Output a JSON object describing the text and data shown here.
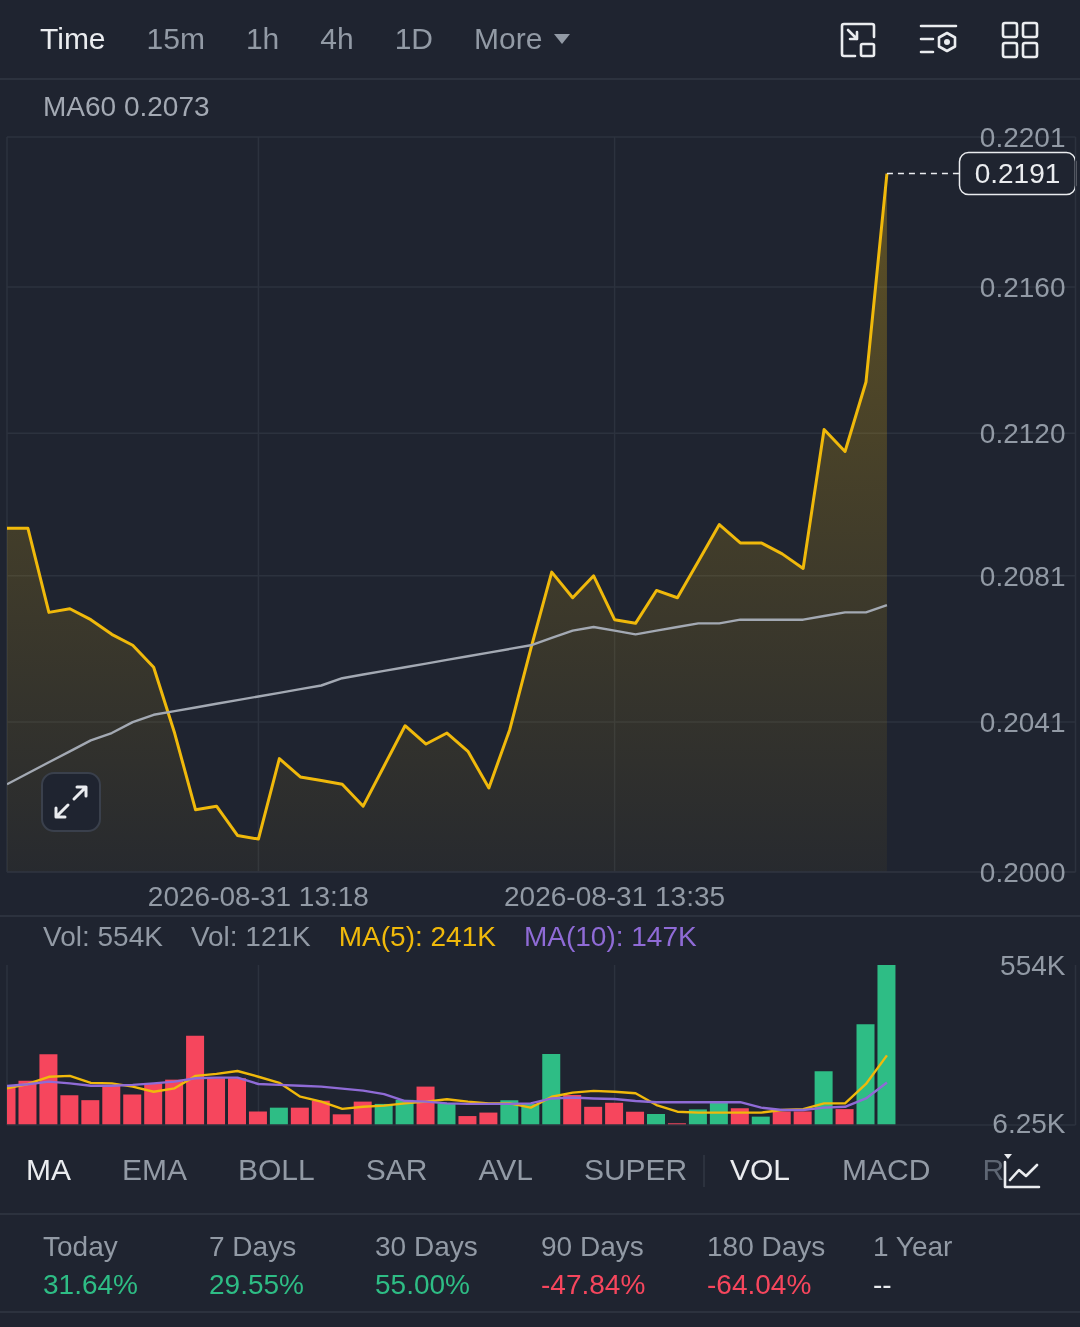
{
  "chart_data": [
    {
      "type": "other",
      "categories": [
        "Time",
        "15m",
        "1h",
        "4h",
        "1D",
        "More"
      ],
      "colors": [
        "#eaecef",
        "#929aa5",
        "#929aa5",
        "#929aa5",
        "#929aa5",
        "#929aa5"
      ]
    },
    {
      "type": "area",
      "x": [
        "2026-08-31T13:06",
        "2026-08-31T13:07",
        "2026-08-31T13:08",
        "2026-08-31T13:09",
        "2026-08-31T13:10",
        "2026-08-31T13:11",
        "2026-08-31T13:12",
        "2026-08-31T13:13",
        "2026-08-31T13:14",
        "2026-08-31T13:15",
        "2026-08-31T13:16",
        "2026-08-31T13:17",
        "2026-08-31T13:18",
        "2026-08-31T13:19",
        "2026-08-31T13:20",
        "2026-08-31T13:21",
        "2026-08-31T13:22",
        "2026-08-31T13:23",
        "2026-08-31T13:24",
        "2026-08-31T13:25",
        "2026-08-31T13:26",
        "2026-08-31T13:27",
        "2026-08-31T13:28",
        "2026-08-31T13:29",
        "2026-08-31T13:30",
        "2026-08-31T13:31",
        "2026-08-31T13:32",
        "2026-08-31T13:33",
        "2026-08-31T13:34",
        "2026-08-31T13:35",
        "2026-08-31T13:36",
        "2026-08-31T13:37",
        "2026-08-31T13:38",
        "2026-08-31T13:39",
        "2026-08-31T13:40",
        "2026-08-31T13:41",
        "2026-08-31T13:42",
        "2026-08-31T13:43",
        "2026-08-31T13:44",
        "2026-08-31T13:45",
        "2026-08-31T13:46",
        "2026-08-31T13:47",
        "2026-08-31T13:48"
      ],
      "xlim": [
        "2026-08-31T13:06",
        "2026-08-31T13:57"
      ],
      "xticks": [
        {
          "value": "2026-08-31T13:18",
          "label": "2026-08-31 13:18"
        },
        {
          "value": "2026-08-31T13:35",
          "label": "2026-08-31 13:35"
        }
      ],
      "ylim": [
        0.2,
        0.2201
      ],
      "yticks": [
        0.2201,
        {
          "value": 0.216,
          "label": "0.2160"
        },
        {
          "value": 0.212,
          "label": "0.2120"
        },
        0.2081,
        0.2041,
        {
          "value": 0.2,
          "label": "0.2000"
        }
      ],
      "grid": true,
      "legend": "top left",
      "series": [
        {
          "type": "area",
          "color": "#f0b90b",
          "values": [
            0.2094,
            0.2094,
            0.2071,
            0.2072,
            0.2069,
            0.2065,
            0.2062,
            0.2056,
            0.2038,
            0.2017,
            0.2018,
            0.201,
            0.2009,
            0.2031,
            0.2026,
            0.2025,
            0.2024,
            0.2018,
            0.2029,
            0.204,
            0.2035,
            0.2038,
            0.2033,
            0.2023,
            0.2039,
            0.2061,
            0.2082,
            0.2075,
            0.2081,
            0.2069,
            0.2068,
            0.2077,
            0.2075,
            0.2085,
            0.2095,
            0.209,
            0.209,
            0.2087,
            0.2083,
            0.2121,
            0.2115,
            0.2134,
            0.2191
          ]
        },
        {
          "type": "line",
          "name": "MA60 0.2073",
          "color": "#a3a9b3",
          "values": [
            0.2024,
            0.2027,
            0.203,
            0.2033,
            0.2036,
            0.2038,
            0.2041,
            0.2043,
            0.2044,
            0.2045,
            0.2046,
            0.2047,
            0.2048,
            0.2049,
            0.205,
            0.2051,
            0.2053,
            0.2054,
            0.2055,
            0.2056,
            0.2057,
            0.2058,
            0.2059,
            0.206,
            0.2061,
            0.2062,
            0.2064,
            0.2066,
            0.2067,
            0.2066,
            0.2065,
            0.2066,
            0.2067,
            0.2068,
            0.2068,
            0.2069,
            0.2069,
            0.2069,
            0.2069,
            0.207,
            0.2071,
            0.2071,
            0.2073
          ]
        }
      ],
      "ref_lines": [
        {
          "axis": "y",
          "value": 0.2191,
          "label": "0.2191",
          "line_style": "dashed",
          "color": "#eaecef"
        }
      ]
    },
    {
      "type": "bar",
      "x": [
        "2026-08-31T13:06",
        "2026-08-31T13:07",
        "2026-08-31T13:08",
        "2026-08-31T13:09",
        "2026-08-31T13:10",
        "2026-08-31T13:11",
        "2026-08-31T13:12",
        "2026-08-31T13:13",
        "2026-08-31T13:14",
        "2026-08-31T13:15",
        "2026-08-31T13:16",
        "2026-08-31T13:17",
        "2026-08-31T13:18",
        "2026-08-31T13:19",
        "2026-08-31T13:20",
        "2026-08-31T13:21",
        "2026-08-31T13:22",
        "2026-08-31T13:23",
        "2026-08-31T13:24",
        "2026-08-31T13:25",
        "2026-08-31T13:26",
        "2026-08-31T13:27",
        "2026-08-31T13:28",
        "2026-08-31T13:29",
        "2026-08-31T13:30",
        "2026-08-31T13:31",
        "2026-08-31T13:32",
        "2026-08-31T13:33",
        "2026-08-31T13:34",
        "2026-08-31T13:35",
        "2026-08-31T13:36",
        "2026-08-31T13:37",
        "2026-08-31T13:38",
        "2026-08-31T13:39",
        "2026-08-31T13:40",
        "2026-08-31T13:41",
        "2026-08-31T13:42",
        "2026-08-31T13:43",
        "2026-08-31T13:44",
        "2026-08-31T13:45",
        "2026-08-31T13:46",
        "2026-08-31T13:47",
        "2026-08-31T13:48"
      ],
      "xlim": [
        "2026-08-31T13:06",
        "2026-08-31T13:57"
      ],
      "xticks": [
        {
          "value": "2026-08-31T13:18",
          "label": null
        },
        {
          "value": "2026-08-31T13:35",
          "label": null
        }
      ],
      "ylim": [
        0,
        554
      ],
      "yticks": [
        {
          "value": 554,
          "label": "554K"
        },
        {
          "value": 6.25,
          "label": "6.25K"
        }
      ],
      "grid": "x",
      "tick_labels": "y",
      "legend": "top left",
      "annotations": [
        "Vol: 554K",
        "Vol: 121K"
      ],
      "series": [
        {
          "type": "bar",
          "values": [
            138,
            153,
            245,
            103,
            86,
            137,
            106,
            144,
            157,
            309,
            162,
            162,
            47,
            60,
            60,
            84,
            37,
            81,
            73,
            87,
            133,
            75,
            31,
            43,
            86,
            73,
            246,
            104,
            63,
            77,
            46,
            38,
            6,
            54,
            77,
            58,
            29,
            47,
            47,
            186,
            55,
            349,
            554
          ],
          "colors": [
            "#f6465d",
            "#f6465d",
            "#f6465d",
            "#f6465d",
            "#f6465d",
            "#f6465d",
            "#f6465d",
            "#f6465d",
            "#f6465d",
            "#f6465d",
            "#f6465d",
            "#f6465d",
            "#f6465d",
            "#2ebd85",
            "#f6465d",
            "#f6465d",
            "#f6465d",
            "#f6465d",
            "#2ebd85",
            "#2ebd85",
            "#f6465d",
            "#2ebd85",
            "#f6465d",
            "#f6465d",
            "#2ebd85",
            "#2ebd85",
            "#2ebd85",
            "#f6465d",
            "#f6465d",
            "#f6465d",
            "#f6465d",
            "#2ebd85",
            "#f6465d",
            "#2ebd85",
            "#2ebd85",
            "#f6465d",
            "#2ebd85",
            "#f6465d",
            "#f6465d",
            "#2ebd85",
            "#f6465d",
            "#2ebd85",
            "#2ebd85"
          ]
        },
        {
          "type": "line",
          "name": "MA(5): 241K",
          "color": "#f0b90b",
          "values": [
            127,
            142,
            167,
            170,
            146,
            144,
            133,
            115,
            127,
            170,
            177,
            187,
            167,
            146,
            98,
            81,
            56,
            63,
            67,
            75,
            81,
            89,
            81,
            75,
            75,
            60,
            98,
            112,
            118,
            115,
            110,
            69,
            46,
            43,
            43,
            43,
            43,
            52,
            55,
            75,
            75,
            142,
            241
          ]
        },
        {
          "type": "line",
          "name": "MA(10): 147K",
          "color": "#8f6bd6",
          "values": [
            135,
            141,
            150,
            144,
            136,
            136,
            139,
            144,
            150,
            162,
            164,
            164,
            142,
            139,
            136,
            133,
            126,
            119,
            107,
            83,
            81,
            75,
            73,
            73,
            73,
            75,
            92,
            95,
            92,
            90,
            83,
            79,
            79,
            79,
            79,
            79,
            60,
            52,
            52,
            60,
            63,
            92,
            147
          ]
        }
      ]
    },
    {
      "type": "other",
      "categories": [
        "MA",
        "EMA",
        "BOLL",
        "SAR",
        "AVL",
        "SUPER"
      ],
      "colors": [
        "#eaecef",
        "#929aa5",
        "#929aa5",
        "#929aa5",
        "#929aa5",
        "#929aa5"
      ]
    },
    {
      "type": "other",
      "categories": [
        "VOL",
        "MACD",
        "R"
      ],
      "colors": [
        "#eaecef",
        "#929aa5",
        "#5e6673"
      ]
    },
    {
      "type": "other",
      "categories": [
        "Today",
        "7 Days",
        "30 Days",
        "90 Days",
        "180 Days",
        "1 Year"
      ],
      "value_labels": [
        "31.64%",
        "29.55%",
        "55.00%",
        "-47.84%",
        "-64.04%",
        "--"
      ],
      "colors": [
        "#2ebd85",
        "#2ebd85",
        "#2ebd85",
        "#f6465d",
        "#f6465d",
        "#eaecef"
      ]
    }
  ]
}
